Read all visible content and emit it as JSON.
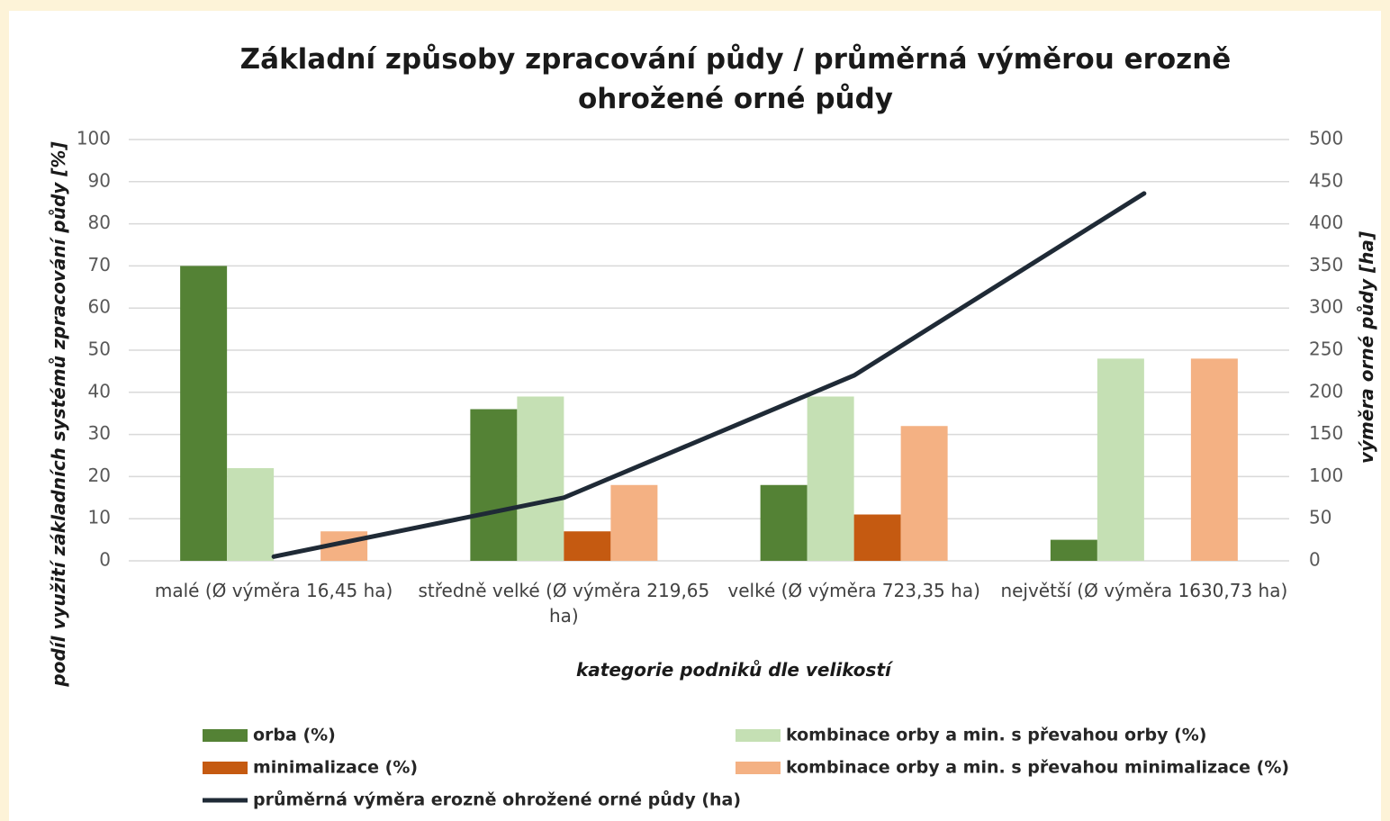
{
  "chart_data": {
    "type": "bar",
    "title": "Základní způsoby zpracování půdy / průměrná výměrou erozně ohrožené orné půdy",
    "x_label": "kategorie podniků dle velikostí",
    "y_label": "podíl využití základních systémů zpracování půdy  [%]",
    "y2_label": "výměra orné půdy  [ha]",
    "categories": [
      "malé (Ø výměra 16,45 ha)",
      "středně velké (Ø výměra 219,65 ha)",
      "velké (Ø výměra 723,35 ha)",
      "největší (Ø výměra 1630,73 ha)"
    ],
    "series": [
      {
        "name": "orba (%)",
        "color": "#548235",
        "values": [
          70,
          36,
          18,
          5
        ]
      },
      {
        "name": "kombinace orby a min. s převahou orby (%)",
        "color": "#c5e0b4",
        "values": [
          22,
          39,
          39,
          48
        ]
      },
      {
        "name": "minimalizace (%)",
        "color": "#c55a11",
        "values": [
          0,
          7,
          11,
          0
        ]
      },
      {
        "name": "kombinace orby a min. s převahou minimalizace (%)",
        "color": "#f4b183",
        "values": [
          7,
          18,
          32,
          48
        ]
      },
      {
        "name": "průměrná výměra erozně ohrožené orné půdy (ha)",
        "color": "#1f2a36",
        "type": "line",
        "axis": "y2",
        "values": [
          5,
          75,
          220,
          436
        ]
      }
    ],
    "ylim": [
      0,
      100
    ],
    "yticks": [
      0,
      10,
      20,
      30,
      40,
      50,
      60,
      70,
      80,
      90,
      100
    ],
    "y2lim": [
      0,
      500
    ],
    "y2ticks": [
      0,
      50,
      100,
      150,
      200,
      250,
      300,
      350,
      400,
      450,
      500
    ],
    "grid": true,
    "legend": "bottom"
  }
}
